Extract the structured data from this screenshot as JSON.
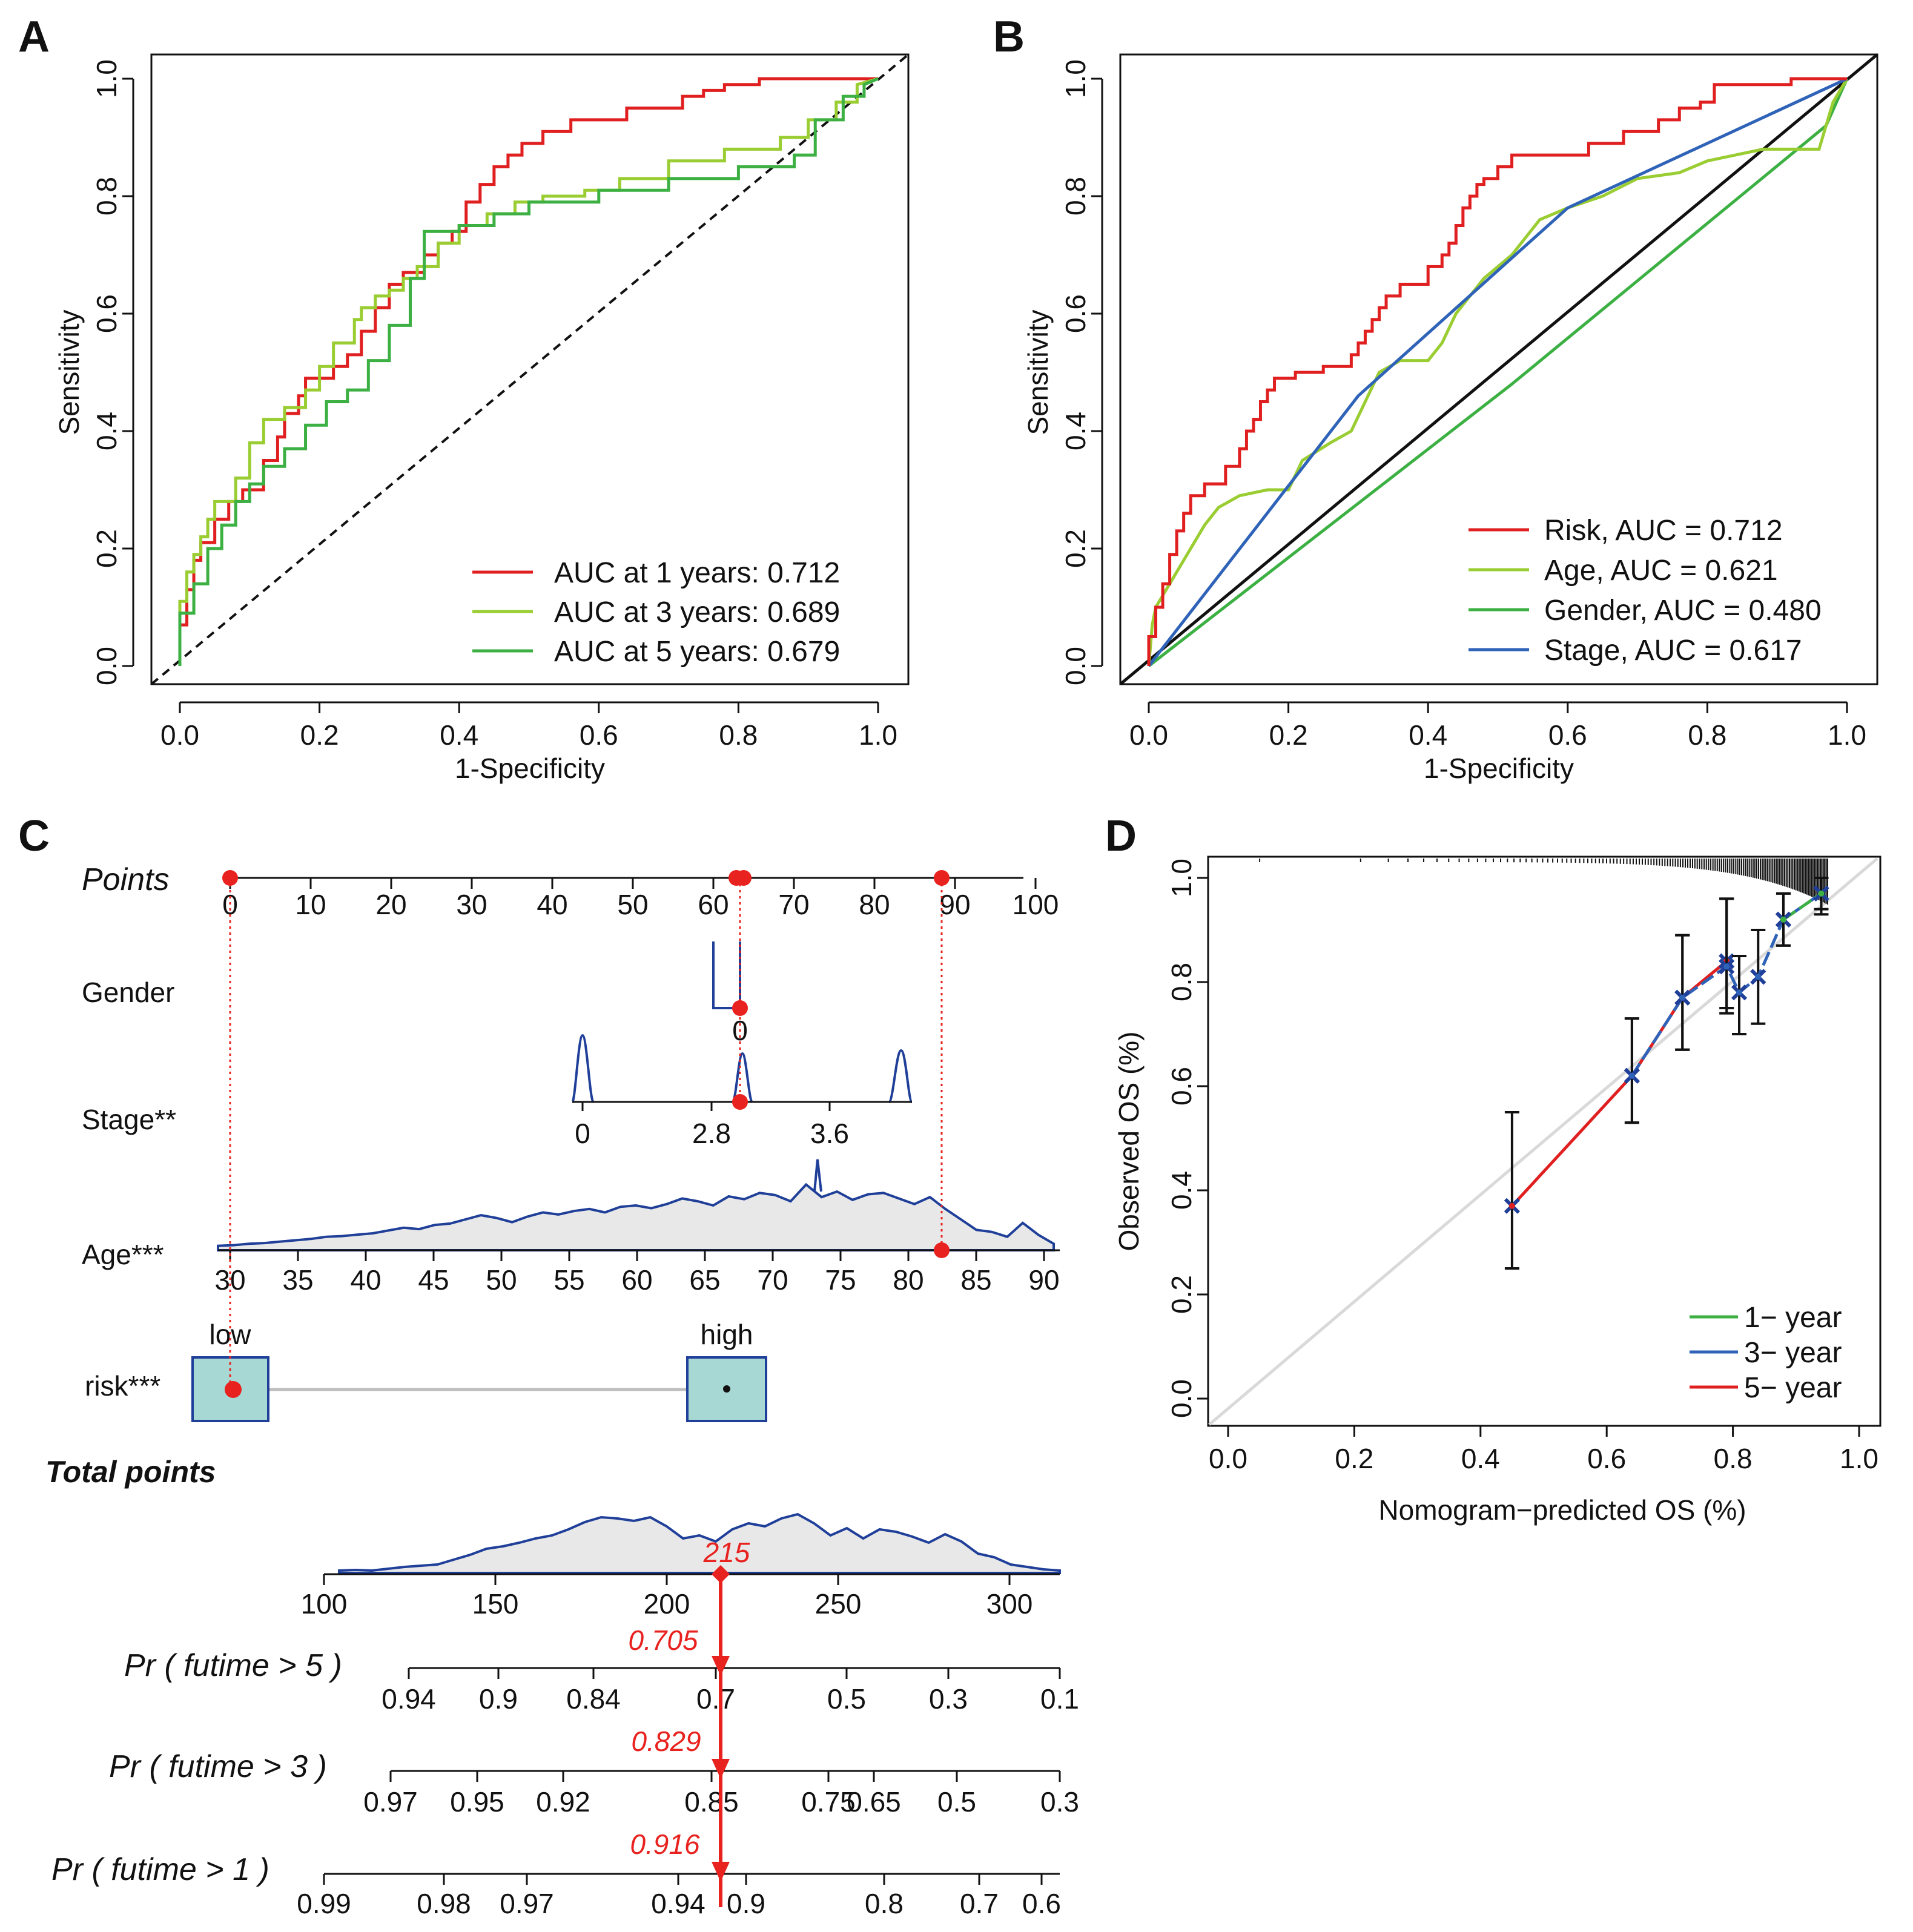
{
  "colors": {
    "red": "#e02020",
    "yellowgreen": "#9acd32",
    "green": "#3cb043",
    "blue": "#2f63b8",
    "navy": "#1f3f99",
    "teal_box": "#a8d8d4",
    "density_fill": "#e8e8e8",
    "ref_gray": "#d9d9d9",
    "marker_red": "#e8221e"
  },
  "panels": {
    "A": {
      "letter": "A"
    },
    "B": {
      "letter": "B"
    },
    "C": {
      "letter": "C"
    },
    "D": {
      "letter": "D"
    }
  },
  "chart_data": [
    {
      "id": "A",
      "type": "line",
      "title": "",
      "xlabel": "1-Specificity",
      "ylabel": "Sensitivity",
      "xlim": [
        0,
        1
      ],
      "ylim": [
        0,
        1
      ],
      "xticks": [
        "0.0",
        "0.2",
        "0.4",
        "0.6",
        "0.8",
        "1.0"
      ],
      "yticks": [
        "0.0",
        "0.2",
        "0.4",
        "0.6",
        "0.8",
        "1.0"
      ],
      "legend_position": "bottom-right",
      "reference_line": "dashed diagonal",
      "series": [
        {
          "name": "AUC at 1  years: 0.712",
          "color": "#e02020",
          "x": [
            0,
            0,
            0.01,
            0.01,
            0.02,
            0.02,
            0.03,
            0.03,
            0.05,
            0.05,
            0.07,
            0.07,
            0.09,
            0.09,
            0.12,
            0.12,
            0.14,
            0.14,
            0.15,
            0.15,
            0.17,
            0.17,
            0.18,
            0.18,
            0.22,
            0.22,
            0.24,
            0.24,
            0.26,
            0.26,
            0.28,
            0.28,
            0.3,
            0.3,
            0.32,
            0.32,
            0.35,
            0.35,
            0.37,
            0.37,
            0.39,
            0.39,
            0.41,
            0.41,
            0.43,
            0.43,
            0.45,
            0.45,
            0.47,
            0.47,
            0.49,
            0.49,
            0.52,
            0.52,
            0.56,
            0.56,
            0.64,
            0.64,
            0.72,
            0.72,
            0.75,
            0.75,
            0.78,
            0.78,
            0.83,
            0.83,
            0.88,
            0.88,
            0.93,
            0.93,
            1.0
          ],
          "y": [
            0,
            0.07,
            0.07,
            0.13,
            0.13,
            0.18,
            0.18,
            0.21,
            0.21,
            0.25,
            0.25,
            0.28,
            0.28,
            0.3,
            0.3,
            0.35,
            0.35,
            0.39,
            0.39,
            0.43,
            0.43,
            0.46,
            0.46,
            0.49,
            0.49,
            0.51,
            0.51,
            0.53,
            0.53,
            0.57,
            0.57,
            0.61,
            0.61,
            0.65,
            0.65,
            0.67,
            0.67,
            0.7,
            0.7,
            0.72,
            0.72,
            0.74,
            0.74,
            0.79,
            0.79,
            0.82,
            0.82,
            0.85,
            0.85,
            0.87,
            0.87,
            0.89,
            0.89,
            0.91,
            0.91,
            0.93,
            0.93,
            0.95,
            0.95,
            0.97,
            0.97,
            0.98,
            0.98,
            0.99,
            0.99,
            1.0,
            1.0,
            1.0,
            1.0,
            1.0,
            1.0
          ]
        },
        {
          "name": "AUC at 3  years: 0.689",
          "color": "#9acd32",
          "x": [
            0,
            0,
            0.01,
            0.01,
            0.02,
            0.02,
            0.03,
            0.03,
            0.04,
            0.04,
            0.05,
            0.05,
            0.08,
            0.08,
            0.1,
            0.1,
            0.12,
            0.12,
            0.15,
            0.15,
            0.18,
            0.18,
            0.2,
            0.2,
            0.22,
            0.22,
            0.25,
            0.25,
            0.26,
            0.26,
            0.28,
            0.28,
            0.3,
            0.3,
            0.32,
            0.32,
            0.34,
            0.34,
            0.37,
            0.37,
            0.4,
            0.4,
            0.44,
            0.44,
            0.48,
            0.48,
            0.52,
            0.52,
            0.58,
            0.58,
            0.63,
            0.63,
            0.7,
            0.7,
            0.78,
            0.78,
            0.86,
            0.86,
            0.9,
            0.9,
            0.94,
            0.94,
            0.97,
            0.97,
            1.0
          ],
          "y": [
            0,
            0.11,
            0.11,
            0.16,
            0.16,
            0.19,
            0.19,
            0.22,
            0.22,
            0.25,
            0.25,
            0.28,
            0.28,
            0.32,
            0.32,
            0.38,
            0.38,
            0.42,
            0.42,
            0.44,
            0.44,
            0.47,
            0.47,
            0.51,
            0.51,
            0.55,
            0.55,
            0.59,
            0.59,
            0.61,
            0.61,
            0.63,
            0.63,
            0.64,
            0.64,
            0.66,
            0.66,
            0.68,
            0.68,
            0.72,
            0.72,
            0.75,
            0.75,
            0.77,
            0.77,
            0.79,
            0.79,
            0.8,
            0.8,
            0.81,
            0.81,
            0.83,
            0.83,
            0.86,
            0.86,
            0.88,
            0.88,
            0.9,
            0.9,
            0.93,
            0.93,
            0.96,
            0.96,
            0.99,
            1.0
          ]
        },
        {
          "name": "AUC at 5  years: 0.679",
          "color": "#3cb043",
          "x": [
            0,
            0,
            0.02,
            0.02,
            0.04,
            0.04,
            0.06,
            0.06,
            0.08,
            0.08,
            0.1,
            0.1,
            0.12,
            0.12,
            0.15,
            0.15,
            0.18,
            0.18,
            0.21,
            0.21,
            0.24,
            0.24,
            0.27,
            0.27,
            0.3,
            0.3,
            0.33,
            0.33,
            0.35,
            0.35,
            0.4,
            0.4,
            0.45,
            0.45,
            0.5,
            0.5,
            0.6,
            0.6,
            0.7,
            0.7,
            0.8,
            0.8,
            0.88,
            0.88,
            0.91,
            0.91,
            0.95,
            0.95,
            0.98,
            0.98,
            1.0
          ],
          "y": [
            0,
            0.09,
            0.09,
            0.14,
            0.14,
            0.2,
            0.2,
            0.24,
            0.24,
            0.28,
            0.28,
            0.31,
            0.31,
            0.34,
            0.34,
            0.37,
            0.37,
            0.41,
            0.41,
            0.45,
            0.45,
            0.47,
            0.47,
            0.52,
            0.52,
            0.58,
            0.58,
            0.66,
            0.66,
            0.74,
            0.74,
            0.75,
            0.75,
            0.77,
            0.77,
            0.79,
            0.79,
            0.81,
            0.81,
            0.83,
            0.83,
            0.85,
            0.85,
            0.87,
            0.87,
            0.93,
            0.93,
            0.97,
            0.97,
            0.99,
            1.0
          ]
        }
      ]
    },
    {
      "id": "B",
      "type": "line",
      "title": "",
      "xlabel": "1-Specificity",
      "ylabel": "Sensitivity",
      "xlim": [
        0,
        1
      ],
      "ylim": [
        0,
        1
      ],
      "xticks": [
        "0.0",
        "0.2",
        "0.4",
        "0.6",
        "0.8",
        "1.0"
      ],
      "yticks": [
        "0.0",
        "0.2",
        "0.4",
        "0.6",
        "0.8",
        "1.0"
      ],
      "legend_position": "bottom-right",
      "reference_line": "solid black diagonal",
      "series": [
        {
          "name": "Risk",
          "auc_label": "AUC = 0.712",
          "color": "#e02020",
          "x": [
            0,
            0,
            0.01,
            0.01,
            0.02,
            0.02,
            0.03,
            0.03,
            0.04,
            0.04,
            0.05,
            0.05,
            0.06,
            0.06,
            0.08,
            0.08,
            0.11,
            0.11,
            0.13,
            0.13,
            0.14,
            0.14,
            0.15,
            0.15,
            0.16,
            0.16,
            0.17,
            0.17,
            0.18,
            0.18,
            0.21,
            0.21,
            0.25,
            0.25,
            0.29,
            0.29,
            0.3,
            0.3,
            0.31,
            0.31,
            0.32,
            0.32,
            0.33,
            0.33,
            0.34,
            0.34,
            0.36,
            0.36,
            0.4,
            0.4,
            0.42,
            0.42,
            0.43,
            0.43,
            0.44,
            0.44,
            0.45,
            0.45,
            0.46,
            0.46,
            0.47,
            0.47,
            0.48,
            0.48,
            0.5,
            0.5,
            0.52,
            0.52,
            0.55,
            0.55,
            0.63,
            0.63,
            0.68,
            0.68,
            0.73,
            0.73,
            0.76,
            0.76,
            0.79,
            0.79,
            0.81,
            0.81,
            0.92,
            0.92,
            0.97,
            0.97,
            1.0
          ],
          "y": [
            0,
            0.05,
            0.05,
            0.1,
            0.1,
            0.14,
            0.14,
            0.19,
            0.19,
            0.23,
            0.23,
            0.26,
            0.26,
            0.29,
            0.29,
            0.31,
            0.31,
            0.34,
            0.34,
            0.37,
            0.37,
            0.4,
            0.4,
            0.42,
            0.42,
            0.45,
            0.45,
            0.47,
            0.47,
            0.49,
            0.49,
            0.5,
            0.5,
            0.51,
            0.51,
            0.53,
            0.53,
            0.55,
            0.55,
            0.57,
            0.57,
            0.59,
            0.59,
            0.61,
            0.61,
            0.63,
            0.63,
            0.65,
            0.65,
            0.68,
            0.68,
            0.7,
            0.7,
            0.72,
            0.72,
            0.75,
            0.75,
            0.78,
            0.78,
            0.8,
            0.8,
            0.82,
            0.82,
            0.83,
            0.83,
            0.85,
            0.85,
            0.87,
            0.87,
            0.87,
            0.87,
            0.89,
            0.89,
            0.91,
            0.91,
            0.93,
            0.93,
            0.95,
            0.95,
            0.96,
            0.96,
            0.99,
            0.99,
            1.0,
            1.0,
            1.0,
            1.0
          ]
        },
        {
          "name": "Age",
          "auc_label": "AUC = 0.621",
          "color": "#9acd32",
          "x": [
            0,
            0.005,
            0.01,
            0.02,
            0.04,
            0.06,
            0.08,
            0.1,
            0.13,
            0.17,
            0.2,
            0.22,
            0.26,
            0.29,
            0.31,
            0.33,
            0.36,
            0.4,
            0.42,
            0.44,
            0.48,
            0.52,
            0.56,
            0.6,
            0.65,
            0.7,
            0.76,
            0.8,
            0.84,
            0.88,
            0.92,
            0.96,
            0.98,
            1.0
          ],
          "y": [
            0,
            0.07,
            0.1,
            0.12,
            0.16,
            0.2,
            0.24,
            0.27,
            0.29,
            0.3,
            0.3,
            0.35,
            0.38,
            0.4,
            0.45,
            0.5,
            0.52,
            0.52,
            0.55,
            0.6,
            0.66,
            0.7,
            0.76,
            0.78,
            0.8,
            0.83,
            0.84,
            0.86,
            0.87,
            0.88,
            0.88,
            0.88,
            0.96,
            1.0
          ]
        },
        {
          "name": "Gender",
          "auc_label": "AUC = 0.480",
          "color": "#3cb043",
          "x": [
            0,
            0.52,
            0.97,
            1.0
          ],
          "y": [
            0,
            0.48,
            0.92,
            1.0
          ]
        },
        {
          "name": "Stage",
          "auc_label": "AUC = 0.617",
          "color": "#2f63b8",
          "x": [
            0,
            0.3,
            0.6,
            1.0
          ],
          "y": [
            0,
            0.46,
            0.78,
            1.0
          ]
        }
      ]
    },
    {
      "id": "C",
      "type": "nomogram",
      "points_axis": {
        "label": "Points",
        "ticks": [
          "0",
          "10",
          "20",
          "30",
          "40",
          "50",
          "60",
          "70",
          "80",
          "90",
          "100"
        ]
      },
      "variables": [
        {
          "name": "Gender",
          "ticks": [
            "0"
          ]
        },
        {
          "name": "Stage**",
          "ticks": [
            "0",
            "2.8",
            "3.6"
          ]
        },
        {
          "name": "Age***",
          "ticks": [
            "30",
            "35",
            "40",
            "45",
            "50",
            "55",
            "60",
            "65",
            "70",
            "75",
            "80",
            "85",
            "90"
          ]
        },
        {
          "name": "risk***",
          "levels": [
            "low",
            "high"
          ]
        }
      ],
      "total_points": {
        "label": "Total points",
        "ticks": [
          "100",
          "150",
          "200",
          "250",
          "300"
        ],
        "value": "215"
      },
      "probabilities": [
        {
          "label": "Pr ( futime > 5 )",
          "value": "0.705",
          "ticks": [
            "0.94",
            "0.9",
            "0.84",
            "0.7",
            "0.5",
            "0.3",
            "0.1"
          ]
        },
        {
          "label": "Pr ( futime > 3 )",
          "value": "0.829",
          "ticks": [
            "0.97",
            "0.95",
            "0.92",
            "0.85",
            "0.75",
            "0.65",
            "0.5",
            "0.3"
          ]
        },
        {
          "label": "Pr ( futime > 1 )",
          "value": "0.916",
          "ticks": [
            "0.99",
            "0.98",
            "0.97",
            "0.94",
            "0.9",
            "0.8",
            "0.7",
            "0.6"
          ]
        }
      ],
      "selected_points": [
        0,
        63,
        89
      ]
    },
    {
      "id": "D",
      "type": "line",
      "title": "",
      "xlabel": "Nomogram−predicted OS (%)",
      "ylabel": "Observed OS (%)",
      "xlim": [
        0,
        1
      ],
      "ylim": [
        0,
        1
      ],
      "xticks": [
        "0.0",
        "0.2",
        "0.4",
        "0.6",
        "0.8",
        "1.0"
      ],
      "yticks": [
        "0.0",
        "0.2",
        "0.4",
        "0.6",
        "0.8",
        "1.0"
      ],
      "legend_position": "bottom-right",
      "series": [
        {
          "name": "1− year",
          "color": "#3cb043",
          "x": [
            0.88,
            0.94
          ],
          "y": [
            0.92,
            0.97
          ],
          "lo": [
            0.87,
            0.94
          ],
          "hi": [
            0.97,
            1.0
          ]
        },
        {
          "name": "3− year",
          "color": "#2f63b8",
          "x": [
            0.64,
            0.72,
            0.79,
            0.81,
            0.84,
            0.88,
            0.94
          ],
          "y": [
            0.62,
            0.77,
            0.83,
            0.78,
            0.81,
            0.92,
            0.97
          ],
          "lo": [
            0.53,
            0.67,
            0.74,
            0.7,
            0.72,
            0.87,
            0.93
          ],
          "hi": [
            0.73,
            0.89,
            0.96,
            0.85,
            0.9,
            0.97,
            1.0
          ]
        },
        {
          "name": "5− year",
          "color": "#e02020",
          "x": [
            0.45,
            0.64,
            0.72,
            0.79
          ],
          "y": [
            0.37,
            0.62,
            0.77,
            0.84
          ],
          "lo": [
            0.25,
            0.53,
            0.67,
            0.75
          ],
          "hi": [
            0.55,
            0.73,
            0.89,
            0.96
          ]
        }
      ]
    }
  ]
}
